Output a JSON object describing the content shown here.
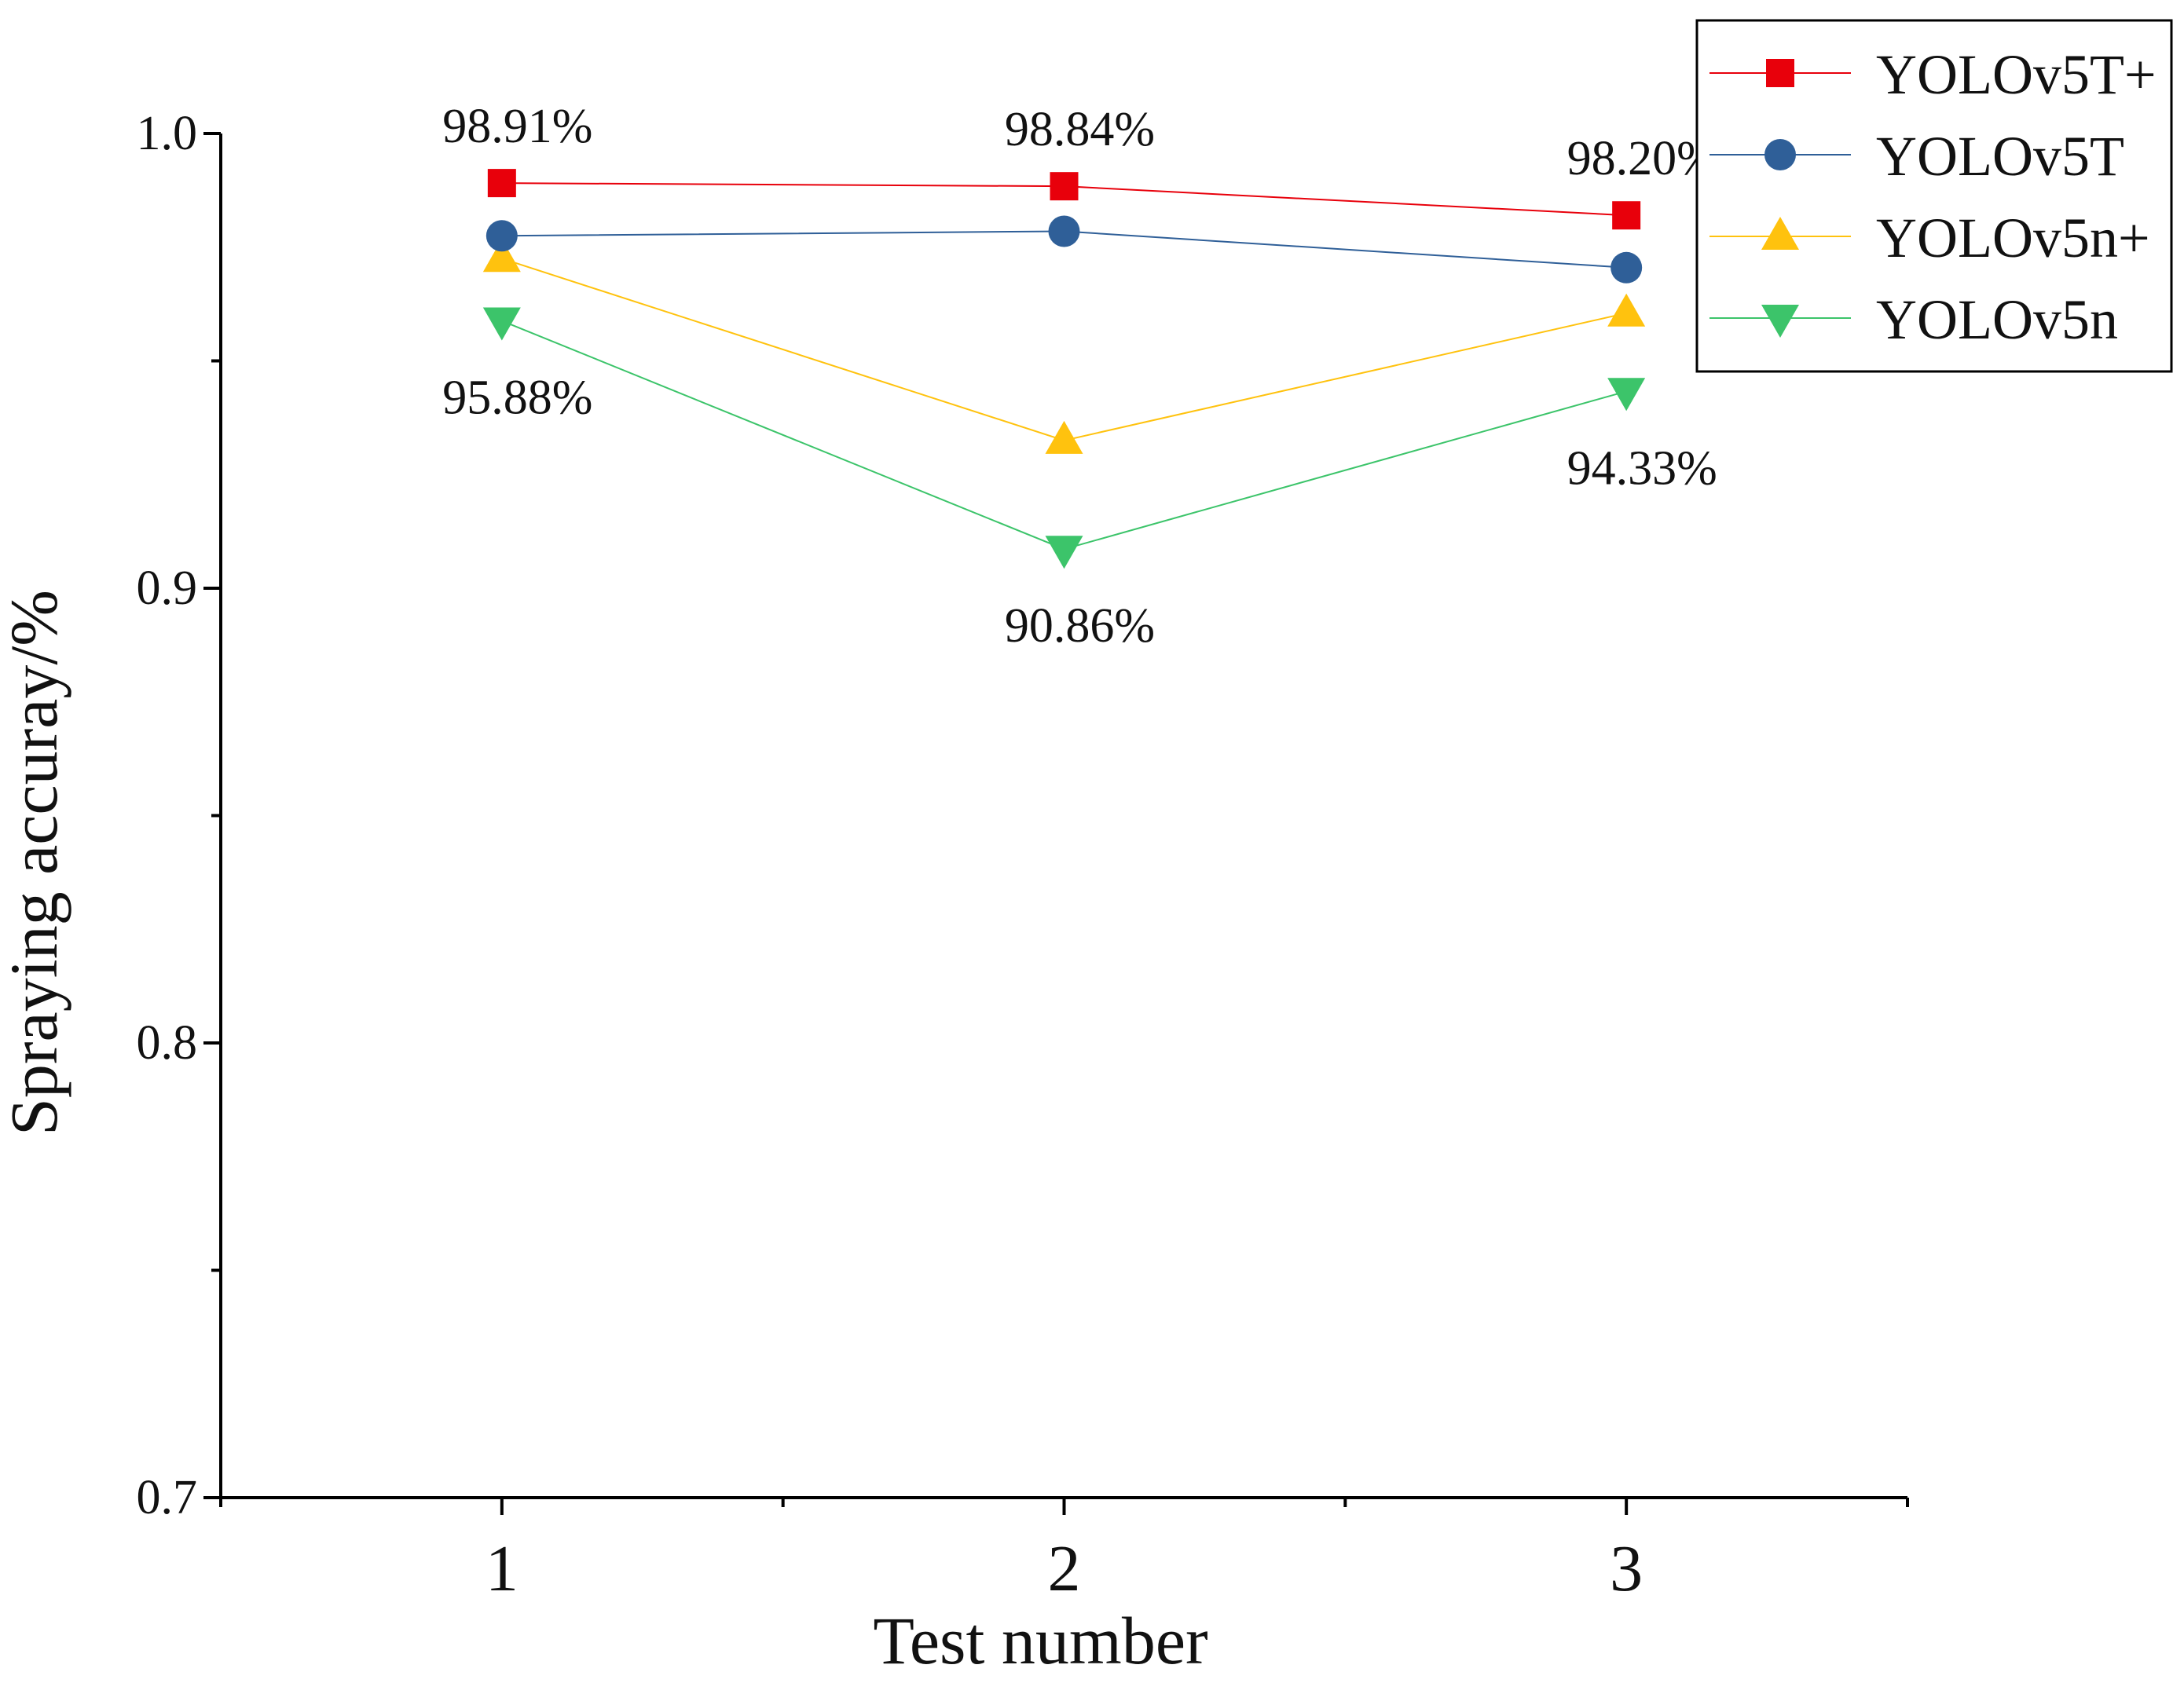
{
  "chart_data": {
    "type": "line",
    "title": "",
    "xlabel": "Test number",
    "ylabel": "Spraying accuray/%",
    "categories": [
      "1",
      "2",
      "3"
    ],
    "x": [
      1,
      2,
      3
    ],
    "xlim": [
      0.5,
      3.5
    ],
    "ylim": [
      0.7,
      1.0
    ],
    "yticks": [
      0.7,
      0.8,
      0.9,
      1.0
    ],
    "ytick_labels": [
      "0.7",
      "0.8",
      "0.9",
      "1.0"
    ],
    "grid": false,
    "legend_position": "top-right",
    "series": [
      {
        "name": "YOLOv5T+",
        "color": "#e8000b",
        "marker": "square",
        "values": [
          0.9891,
          0.9884,
          0.982
        ]
      },
      {
        "name": "YOLOv5T",
        "color": "#2f5f98",
        "marker": "circle",
        "values": [
          0.9775,
          0.9785,
          0.9705
        ]
      },
      {
        "name": "YOLOv5n+",
        "color": "#ffc20e",
        "marker": "triangle-up",
        "values": [
          0.9725,
          0.9325,
          0.9605
        ]
      },
      {
        "name": "YOLOv5n",
        "color": "#3cc46a",
        "marker": "triangle-down",
        "values": [
          0.9588,
          0.9086,
          0.9433
        ]
      }
    ],
    "annotations": [
      {
        "text": "98.91%",
        "series": 0,
        "point": 0,
        "placement": "above"
      },
      {
        "text": "98.84%",
        "series": 0,
        "point": 1,
        "placement": "above"
      },
      {
        "text": "98.20%",
        "series": 0,
        "point": 2,
        "placement": "above"
      },
      {
        "text": "95.88%",
        "series": 3,
        "point": 0,
        "placement": "below"
      },
      {
        "text": "90.86%",
        "series": 3,
        "point": 1,
        "placement": "below"
      },
      {
        "text": "94.33%",
        "series": 3,
        "point": 2,
        "placement": "below"
      }
    ]
  }
}
